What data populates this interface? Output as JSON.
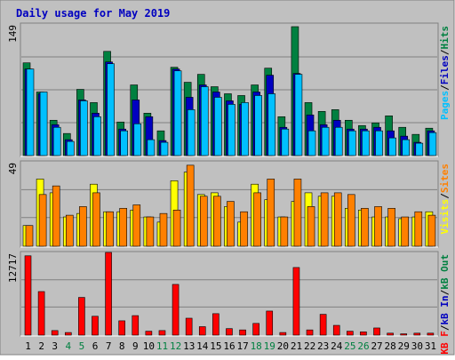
{
  "chart_data": {
    "type": "bar",
    "title": "Daily usage for May 2019",
    "categories": [
      "1",
      "2",
      "3",
      "4",
      "5",
      "6",
      "7",
      "8",
      "9",
      "10",
      "11",
      "12",
      "13",
      "14",
      "15",
      "16",
      "17",
      "18",
      "19",
      "20",
      "21",
      "22",
      "23",
      "24",
      "25",
      "26",
      "27",
      "28",
      "29",
      "30",
      "31"
    ],
    "weekend_days": [
      "4",
      "5",
      "11",
      "12",
      "18",
      "19",
      "25",
      "26"
    ],
    "panels": [
      {
        "id": "hits_files_pages",
        "y_max_label": "149",
        "ylim": [
          0,
          149
        ],
        "legend": [
          {
            "text": "Pages",
            "color": "#00C0FF"
          },
          {
            "text": "/",
            "color": "#000000"
          },
          {
            "text": "Files",
            "color": "#0000C0"
          },
          {
            "text": "/",
            "color": "#000000"
          },
          {
            "text": "Hits",
            "color": "#008040"
          }
        ],
        "series": [
          {
            "name": "Hits",
            "color": "#008040",
            "values": [
              105,
              72,
              40,
              25,
              75,
              60,
              118,
              38,
              80,
              48,
              28,
              100,
              83,
              92,
              78,
              70,
              68,
              80,
              99,
              44,
              146,
              60,
              50,
              52,
              40,
              34,
              37,
              45,
              32,
              24,
              31
            ]
          },
          {
            "name": "Files",
            "color": "#0000C0",
            "values": [
              98,
              70,
              35,
              18,
              63,
              48,
              106,
              30,
              63,
              44,
              17,
              98,
              66,
              80,
              72,
              62,
              58,
              72,
              91,
              32,
              93,
              46,
              35,
              40,
              30,
              30,
              32,
              28,
              22,
              15,
              28
            ]
          },
          {
            "name": "Pages",
            "color": "#00C0FF",
            "values": [
              98,
              72,
              32,
              16,
              62,
              44,
              104,
              28,
              36,
              18,
              15,
              96,
              52,
              78,
              66,
              58,
              60,
              68,
              70,
              30,
              92,
              28,
              32,
              32,
              28,
              28,
              28,
              20,
              18,
              14,
              26
            ]
          }
        ]
      },
      {
        "id": "visits_sites",
        "y_max_label": "49",
        "ylim": [
          0,
          49
        ],
        "legend": [
          {
            "text": "Visits",
            "color": "#FFFF00"
          },
          {
            "text": "/",
            "color": "#000000"
          },
          {
            "text": "Sites",
            "color": "#FF8000"
          }
        ],
        "series": [
          {
            "name": "Visits",
            "color": "#FFFF00",
            "values": [
              12,
              39,
              31,
              17,
              19,
              36,
              20,
              20,
              21,
              17,
              14,
              38,
              43,
              30,
              31,
              23,
              14,
              36,
              27,
              17,
              26,
              31,
              29,
              29,
              22,
              21,
              17,
              17,
              16,
              17,
              20
            ]
          },
          {
            "name": "Sites",
            "color": "#FF8000",
            "values": [
              12,
              30,
              35,
              18,
              23,
              31,
              20,
              22,
              24,
              17,
              19,
              21,
              47,
              29,
              29,
              26,
              20,
              31,
              39,
              17,
              39,
              23,
              31,
              31,
              30,
              22,
              23,
              22,
              17,
              20,
              18
            ]
          }
        ]
      },
      {
        "id": "kb",
        "y_max_label": "12717",
        "ylim": [
          0,
          12717
        ],
        "legend": [
          {
            "text": "KB F",
            "color": "#FF0000"
          },
          {
            "text": "/",
            "color": "#000000"
          },
          {
            "text": "kB In",
            "color": "#0000C0"
          },
          {
            "text": "/",
            "color": "#000000"
          },
          {
            "text": "kB Out",
            "color": "#008040"
          }
        ],
        "series": [
          {
            "name": "KB F",
            "color": "#FF0000",
            "values": [
              12200,
              6700,
              700,
              400,
              5800,
              2900,
              12717,
              2200,
              3000,
              600,
              700,
              7800,
              2600,
              1300,
              3300,
              1000,
              800,
              1800,
              3700,
              400,
              10400,
              800,
              3200,
              1500,
              600,
              500,
              1100,
              300,
              200,
              300,
              300
            ]
          }
        ]
      }
    ]
  },
  "colors": {
    "background": "#ffffff",
    "frame": "#C0C0C0",
    "panel_bg": "#C0C0C0",
    "title": "#0000C0",
    "grid": "#808080",
    "weekday_label": "#000000",
    "weekend_label": "#008040"
  }
}
